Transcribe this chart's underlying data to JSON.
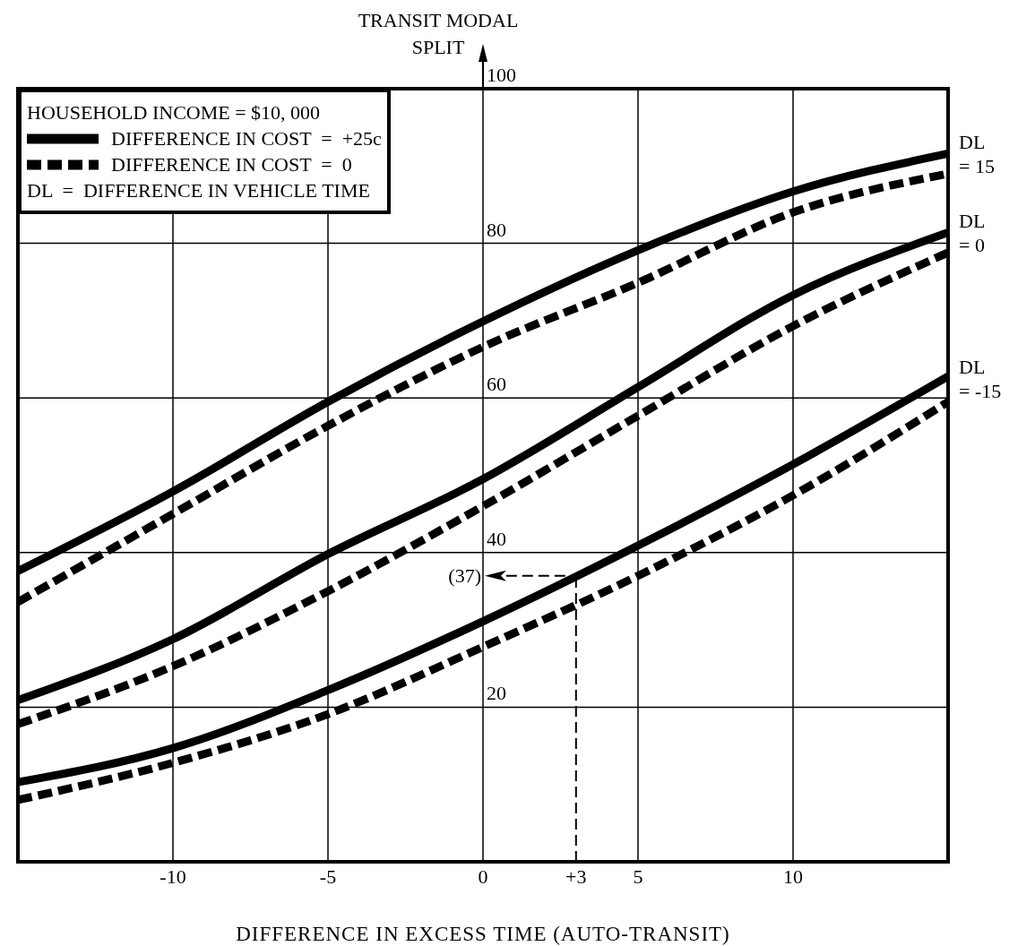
{
  "chart_data": {
    "type": "line",
    "xlabel": "DIFFERENCE IN EXCESS TIME (AUTO-TRANSIT)",
    "ylabel": "TRANSIT MODAL SPLIT",
    "legend_title": "HOUSEHOLD INCOME = $10, 000",
    "x": [
      -15,
      -10,
      -5,
      0,
      5,
      10,
      15
    ],
    "series": [
      {
        "name": "DIFFERENCE IN COST  =  +25c",
        "color": "#000000",
        "line_style": "solid",
        "values": [
          37.6,
          47.9,
          59.5,
          69.9,
          79.1,
          86.7,
          91.6
        ]
      },
      {
        "name": "DIFFERENCE IN COST  =  0",
        "color": "#000000",
        "line_style": "dashed",
        "values": [
          33.6,
          45,
          56.4,
          66.6,
          74.9,
          84,
          89
        ]
      },
      {
        "color": "#000000",
        "line_style": "solid",
        "values": [
          20.9,
          28.8,
          39.8,
          49.5,
          61.4,
          73.3,
          81.4
        ]
      },
      {
        "color": "#000000",
        "line_style": "dashed",
        "values": [
          17.8,
          25.3,
          35,
          46,
          57.7,
          69.3,
          78.8
        ]
      },
      {
        "color": "#000000",
        "line_style": "solid",
        "values": [
          10.3,
          14.7,
          22.2,
          31.1,
          40.9,
          51.4,
          62.8
        ]
      },
      {
        "color": "#000000",
        "line_style": "dashed",
        "values": [
          8,
          12.8,
          19.1,
          27.8,
          37,
          47.4,
          59.5
        ]
      }
    ],
    "xlim": [
      -15,
      15
    ],
    "ylim": [
      0,
      100
    ],
    "xticks": [
      -10,
      -5,
      0,
      {
        "value": 3,
        "label": "+3"
      },
      5,
      10
    ],
    "yticks": [
      20,
      40,
      60,
      80,
      100
    ],
    "grid": true,
    "legend": "top left",
    "annotations": [
      "DL  =  DIFFERENCE IN VEHICLE TIME",
      "DL = 15",
      "DL = 0",
      "DL = -15"
    ],
    "ref_lines": [
      {
        "axis": "x",
        "value": 3,
        "line_style": "dashed",
        "color": "#000000"
      },
      {
        "axis": "y",
        "value": 37,
        "label": "(37)",
        "line_style": "dashed",
        "color": "#000000"
      }
    ]
  }
}
